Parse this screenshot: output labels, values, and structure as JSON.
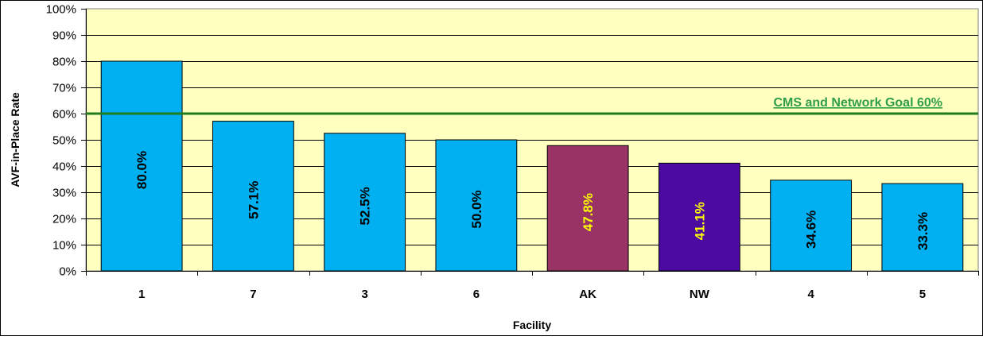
{
  "chart_data": {
    "type": "bar",
    "title": "",
    "xlabel": "Facility",
    "ylabel": "AVF-in-Place Rate",
    "categories": [
      "1",
      "7",
      "3",
      "6",
      "AK",
      "NW",
      "4",
      "5"
    ],
    "values": [
      80.0,
      57.1,
      52.5,
      50.0,
      47.8,
      41.1,
      34.6,
      33.3
    ],
    "data_labels": [
      "80.0%",
      "57.1%",
      "52.5%",
      "50.0%",
      "47.8%",
      "41.1%",
      "34.6%",
      "33.3%"
    ],
    "bar_colors": [
      "#00B0F0",
      "#00B0F0",
      "#00B0F0",
      "#00B0F0",
      "#993366",
      "#4B0AA0",
      "#00B0F0",
      "#00B0F0"
    ],
    "label_colors": [
      "#000000",
      "#000000",
      "#000000",
      "#000000",
      "#FFFF00",
      "#FFFF00",
      "#000000",
      "#000000"
    ],
    "ylim": [
      0,
      100
    ],
    "yticks": [
      0,
      10,
      20,
      30,
      40,
      50,
      60,
      70,
      80,
      90,
      100
    ],
    "ytick_labels": [
      "0%",
      "10%",
      "20%",
      "30%",
      "40%",
      "50%",
      "60%",
      "70%",
      "80%",
      "90%",
      "100%"
    ],
    "grid": true,
    "plot_background": "#FFFFC0",
    "goal_line": {
      "value": 60,
      "label": "CMS and Network Goal 60%",
      "color": "#1E7B1E"
    }
  }
}
